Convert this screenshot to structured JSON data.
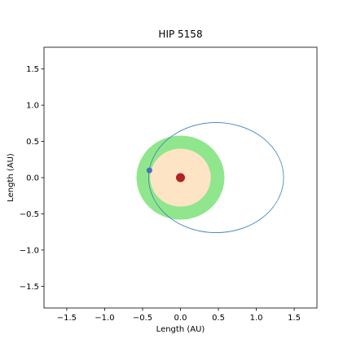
{
  "chart_data": {
    "type": "scatter",
    "title": "HIP 5158",
    "xlabel": "Length (AU)",
    "ylabel": "Length (AU)",
    "xlim": [
      -1.8,
      1.8
    ],
    "ylim": [
      -1.8,
      1.8
    ],
    "x_ticks": [
      -1.5,
      -1.0,
      -0.5,
      0.0,
      0.5,
      1.0,
      1.5
    ],
    "x_tick_labels": [
      "−1.5",
      "−1.0",
      "−0.5",
      "0.0",
      "0.5",
      "1.0",
      "1.5"
    ],
    "y_ticks": [
      -1.5,
      -1.0,
      -0.5,
      0.0,
      0.5,
      1.0,
      1.5
    ],
    "y_tick_labels": [
      "−1.5",
      "−1.0",
      "−0.5",
      "0.0",
      "0.5",
      "1.0",
      "1.5"
    ],
    "grid": false,
    "habitable_zone": {
      "inner_radius": 0.4,
      "outer_radius": 0.58,
      "color": "#90e68c",
      "inner_color": "#fde4c4"
    },
    "star": {
      "x": 0.0,
      "y": 0.0,
      "color": "#b22222"
    },
    "orbit": {
      "center_x": 0.47,
      "center_y": 0.0,
      "semi_major": 0.89,
      "semi_minor": 0.76,
      "color": "#3a7cbf"
    },
    "planet": {
      "x": -0.41,
      "y": 0.1,
      "color": "#4a72b8"
    }
  }
}
